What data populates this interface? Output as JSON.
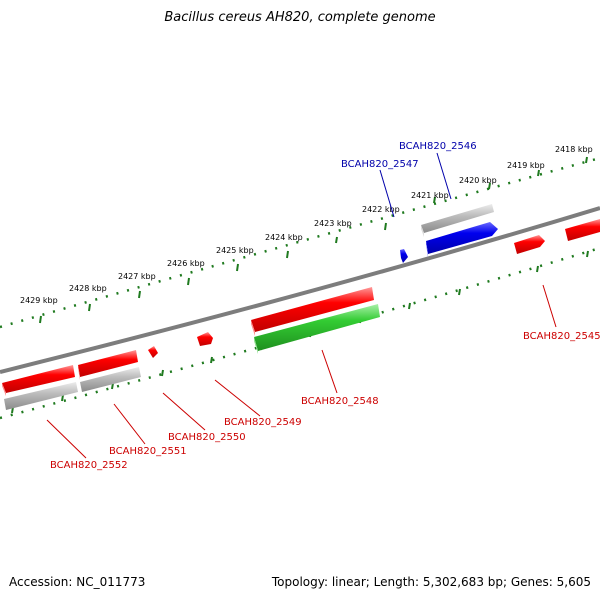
{
  "title": "Bacillus cereus AH820, complete genome",
  "footer": {
    "accession": "Accession: NC_011773",
    "summary": "Topology: linear; Length: 5,302,683 bp; Genes: 5,605"
  },
  "colors": {
    "backbone": "#7a7a7a",
    "ticks": "#1f7a1f",
    "red_gene": "#ff0000",
    "gray_gene": "#b8b8b8",
    "blue_gene": "#0000ee",
    "green_gene": "#33cc33",
    "red_label": "#cc0000",
    "blue_label": "#0000aa"
  },
  "ticks": [
    "2418 kbp",
    "2419 kbp",
    "2420 kbp",
    "2421 kbp",
    "2422 kbp",
    "2423 kbp",
    "2424 kbp",
    "2425 kbp",
    "2426 kbp",
    "2427 kbp",
    "2428 kbp",
    "2429 kbp"
  ],
  "genes": [
    {
      "label": "BCAH820_2545",
      "color": "red"
    },
    {
      "label": "BCAH820_2546",
      "color": "blue"
    },
    {
      "label": "BCAH820_2547",
      "color": "blue"
    },
    {
      "label": "BCAH820_2548",
      "color": "red"
    },
    {
      "label": "BCAH820_2549",
      "color": "red"
    },
    {
      "label": "BCAH820_2550",
      "color": "red"
    },
    {
      "label": "BCAH820_2551",
      "color": "red"
    },
    {
      "label": "BCAH820_2552",
      "color": "red"
    }
  ]
}
